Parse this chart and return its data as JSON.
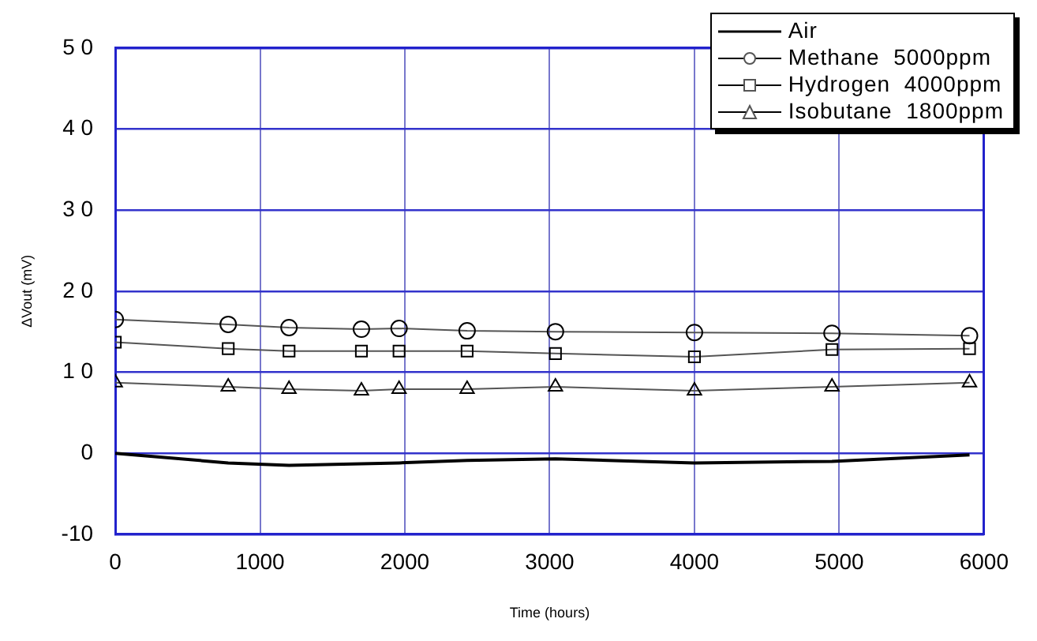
{
  "chart_data": {
    "type": "line",
    "xlabel": "Time (hours)",
    "ylabel": "ΔVout (mV)",
    "x": [
      0,
      780,
      1200,
      1700,
      1960,
      2430,
      3040,
      4000,
      4950,
      5900
    ],
    "series": [
      {
        "name": "Air",
        "color": "#000000",
        "marker": "none",
        "values": [
          0,
          -1.2,
          -1.5,
          -1.3,
          -1.2,
          -0.9,
          -0.7,
          -1.2,
          -1.0,
          -0.2
        ]
      },
      {
        "name": "Methane  5000ppm",
        "color": "#555555",
        "marker": "circle",
        "values": [
          16.5,
          15.9,
          15.5,
          15.3,
          15.4,
          15.1,
          15.0,
          14.9,
          14.8,
          14.5
        ]
      },
      {
        "name": "Hydrogen  4000ppm",
        "color": "#555555",
        "marker": "square",
        "values": [
          13.7,
          12.9,
          12.6,
          12.6,
          12.6,
          12.6,
          12.3,
          11.9,
          12.8,
          12.9
        ]
      },
      {
        "name": "Isobutane  1800ppm",
        "color": "#555555",
        "marker": "triangle",
        "values": [
          8.7,
          8.2,
          7.9,
          7.7,
          7.9,
          7.9,
          8.2,
          7.7,
          8.2,
          8.7
        ]
      }
    ],
    "xlim": [
      0,
      6000
    ],
    "xticks": [
      0,
      1000,
      2000,
      3000,
      4000,
      5000,
      6000
    ],
    "ylim": [
      -10,
      50
    ],
    "yticks": [
      -10,
      {
        "value": 0,
        "label": "0"
      },
      {
        "value": 10,
        "label": "1 0"
      },
      {
        "value": 20,
        "label": "2 0"
      },
      {
        "value": 30,
        "label": "3 0"
      },
      {
        "value": 40,
        "label": "4 0"
      },
      {
        "value": 50,
        "label": "5 0"
      }
    ],
    "grid": true,
    "legend": "top right",
    "line_style": "solid"
  }
}
